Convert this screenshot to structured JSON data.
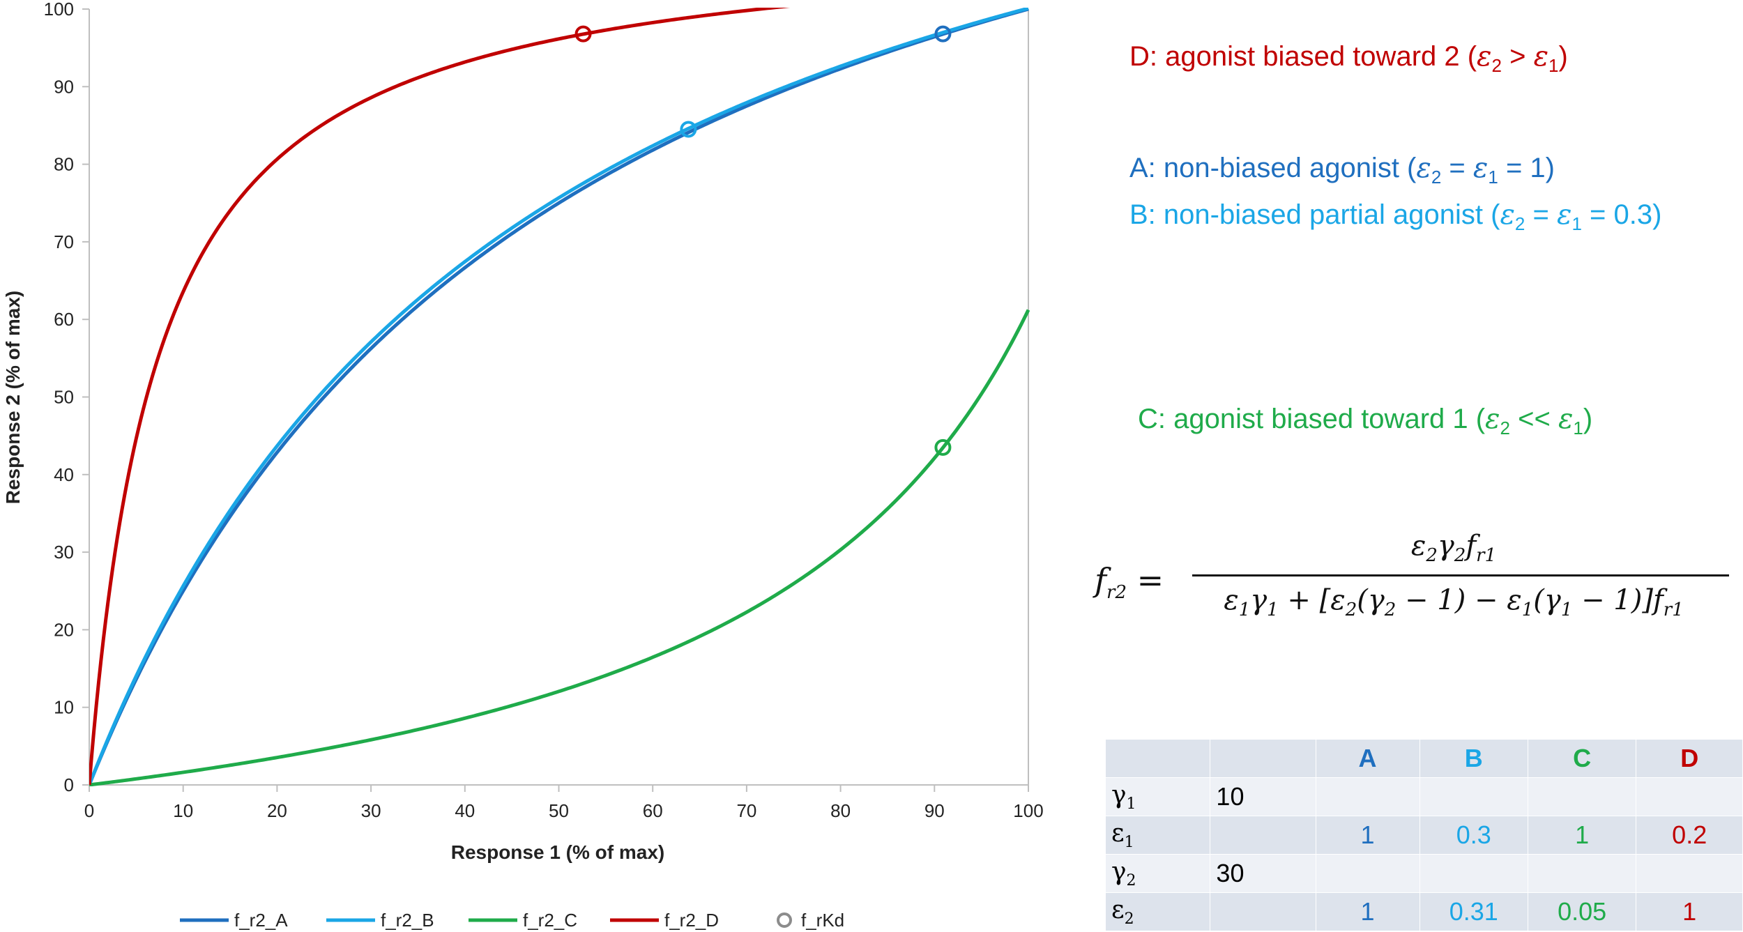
{
  "colors": {
    "A": "#1f6fbf",
    "B": "#1aa6e6",
    "C": "#1fab4a",
    "D": "#c00000",
    "kd": "#8c8c8c",
    "axis": "#bfbfbf"
  },
  "chart_data": {
    "type": "line",
    "title": "",
    "xlabel": "Response 1 (% of max)",
    "ylabel": "Response 2 (% of max)",
    "xlim": [
      0,
      100
    ],
    "ylim": [
      0,
      100
    ],
    "xticks": [
      0,
      10,
      20,
      30,
      40,
      50,
      60,
      70,
      80,
      90,
      100
    ],
    "yticks": [
      0,
      10,
      20,
      30,
      40,
      50,
      60,
      70,
      80,
      90,
      100
    ],
    "grid": false,
    "legend_position": "bottom",
    "series": [
      {
        "name": "f_r2_A",
        "color_key": "A",
        "gamma1": 10,
        "gamma2": 30,
        "eps1": 1,
        "eps2": 1
      },
      {
        "name": "f_r2_B",
        "color_key": "B",
        "gamma1": 10,
        "gamma2": 30,
        "eps1": 0.3,
        "eps2": 0.31
      },
      {
        "name": "f_r2_C",
        "color_key": "C",
        "gamma1": 10,
        "gamma2": 30,
        "eps1": 1,
        "eps2": 0.05
      },
      {
        "name": "f_r2_D",
        "color_key": "D",
        "gamma1": 10,
        "gamma2": 30,
        "eps1": 0.2,
        "eps2": 1
      }
    ],
    "markers": {
      "name": "f_rKd",
      "points": [
        {
          "series": "A",
          "x": 90.9,
          "y": 96.8
        },
        {
          "series": "B",
          "x": 63.8,
          "y": 84.5
        },
        {
          "series": "C",
          "x": 90.9,
          "y": 43.5
        },
        {
          "series": "D",
          "x": 52.6,
          "y": 96.8
        }
      ]
    }
  },
  "annotations": {
    "D": {
      "prefix": "D: agonist biased toward 2 (",
      "rel": " > ",
      "suffix": ")"
    },
    "A": {
      "prefix": "A: non-biased agonist (",
      "mid": " = ",
      "suffix": " = 1)"
    },
    "B": {
      "prefix": "B: non-biased partial agonist (",
      "mid": " = ",
      "suffix": " = 0.3)"
    },
    "C": {
      "prefix": "C: agonist biased toward 1 (",
      "rel": " << ",
      "suffix": ")"
    }
  },
  "table": {
    "headers": [
      "A",
      "B",
      "C",
      "D"
    ],
    "gamma1": "10",
    "gamma2": "30",
    "eps1": [
      "1",
      "0.3",
      "1",
      "0.2"
    ],
    "eps2": [
      "1",
      "0.31",
      "0.05",
      "1"
    ]
  }
}
